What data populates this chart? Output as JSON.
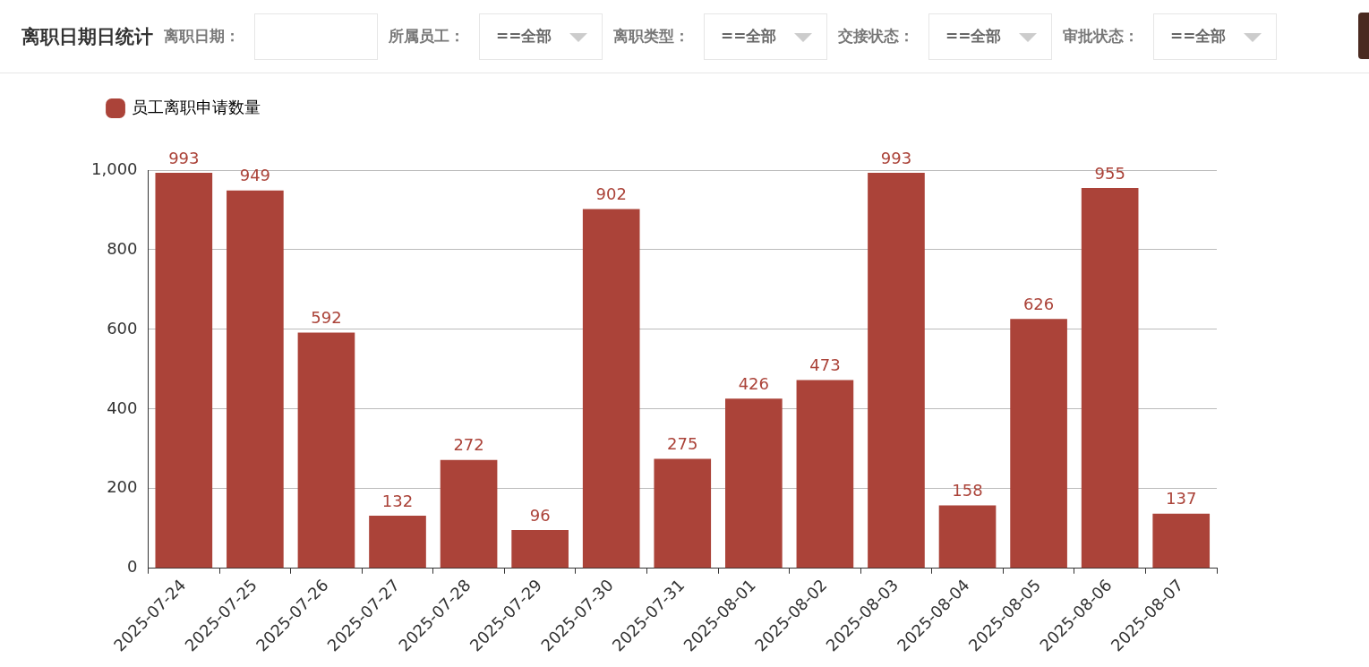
{
  "chart_data": {
    "type": "bar",
    "title": "离职日期日统计",
    "annotations": [
      "离职日期：",
      "所属员工：",
      "==全部",
      "离职类型：",
      "==全部",
      "交接状态：",
      "==全部",
      "审批状态：",
      "==全部"
    ],
    "categories": [
      "2025-07-24",
      "2025-07-25",
      "2025-07-26",
      "2025-07-27",
      "2025-07-28",
      "2025-07-29",
      "2025-07-30",
      "2025-07-31",
      "2025-08-01",
      "2025-08-02",
      "2025-08-03",
      "2025-08-04",
      "2025-08-05",
      "2025-08-06",
      "2025-08-07"
    ],
    "series": [
      {
        "name": "员工离职申请数量",
        "color": "#ab4339",
        "values": [
          993,
          949,
          592,
          132,
          272,
          96,
          902,
          275,
          426,
          473,
          993,
          158,
          626,
          955,
          137
        ]
      }
    ],
    "ylim": [
      0,
      1000
    ],
    "yticks": [
      0,
      200,
      400,
      600,
      800,
      {
        "value": 1000,
        "label": "1,000"
      }
    ],
    "grid": "y",
    "legend": "top left",
    "data_labels": true
  }
}
